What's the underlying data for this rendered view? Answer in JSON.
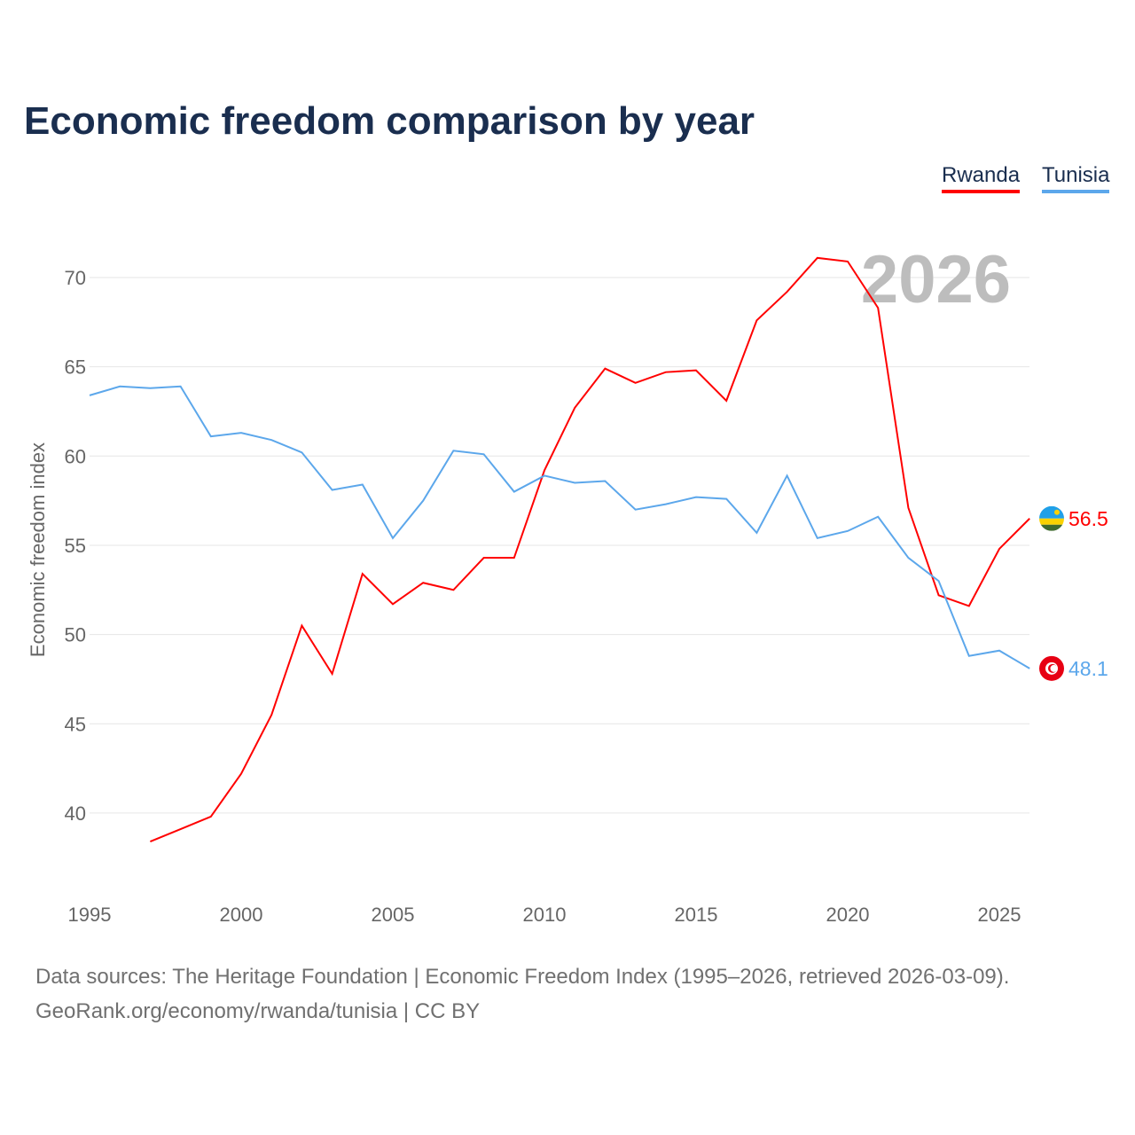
{
  "chart_data": {
    "type": "line",
    "title": "Economic freedom comparison by year",
    "xlabel": "",
    "ylabel": "Economic freedom index",
    "xlim": [
      1995,
      2026
    ],
    "ylim": [
      35,
      72.5
    ],
    "xticks": [
      1995,
      2000,
      2005,
      2010,
      2015,
      2020,
      2025
    ],
    "yticks": [
      40,
      45,
      50,
      55,
      60,
      65,
      70
    ],
    "year_watermark": "2026",
    "legend": "top-right",
    "series": [
      {
        "name": "Rwanda",
        "color": "#ff0000",
        "end_label": "56.5",
        "flag": "rwanda-flag",
        "x": [
          1997,
          1998,
          1999,
          2000,
          2001,
          2002,
          2003,
          2004,
          2005,
          2006,
          2007,
          2008,
          2009,
          2010,
          2011,
          2012,
          2013,
          2014,
          2015,
          2016,
          2017,
          2018,
          2019,
          2020,
          2021,
          2022,
          2023,
          2024,
          2025,
          2026
        ],
        "values": [
          38.4,
          39.1,
          39.8,
          42.2,
          45.5,
          50.5,
          47.8,
          53.4,
          51.7,
          52.9,
          52.5,
          54.3,
          54.3,
          59.2,
          62.7,
          64.9,
          64.1,
          64.7,
          64.8,
          63.1,
          67.6,
          69.2,
          71.1,
          70.9,
          68.3,
          57.1,
          52.2,
          51.6,
          54.8,
          56.5
        ]
      },
      {
        "name": "Tunisia",
        "color": "#5ca7eb",
        "end_label": "48.1",
        "flag": "tunisia-flag",
        "x": [
          1995,
          1996,
          1997,
          1998,
          1999,
          2000,
          2001,
          2002,
          2003,
          2004,
          2005,
          2006,
          2007,
          2008,
          2009,
          2010,
          2011,
          2012,
          2013,
          2014,
          2015,
          2016,
          2017,
          2018,
          2019,
          2020,
          2021,
          2022,
          2023,
          2024,
          2025,
          2026
        ],
        "values": [
          63.4,
          63.9,
          63.8,
          63.9,
          61.1,
          61.3,
          60.9,
          60.2,
          58.1,
          58.4,
          55.4,
          57.5,
          60.3,
          60.1,
          58.0,
          58.9,
          58.5,
          58.6,
          57.0,
          57.3,
          57.7,
          57.6,
          55.7,
          58.9,
          55.4,
          55.8,
          56.6,
          54.3,
          53.0,
          48.8,
          49.1,
          48.1
        ]
      }
    ]
  },
  "footer": {
    "line1": "Data sources: The Heritage Foundation | Economic Freedom Index (1995–2026, retrieved 2026-03-09).",
    "line2": "GeoRank.org/economy/rwanda/tunisia | CC BY"
  }
}
